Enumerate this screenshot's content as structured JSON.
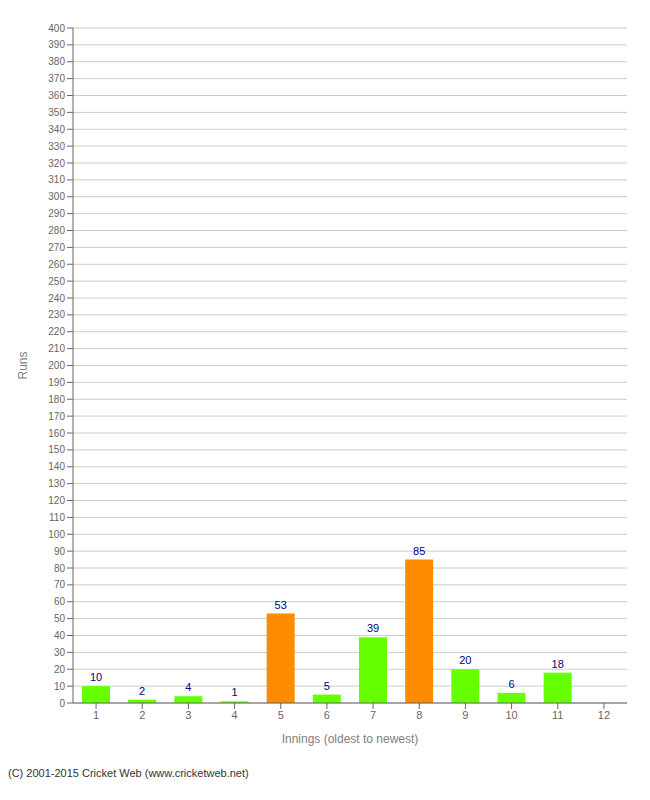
{
  "chart_data": {
    "type": "bar",
    "categories": [
      "1",
      "2",
      "3",
      "4",
      "5",
      "6",
      "7",
      "8",
      "9",
      "10",
      "11",
      "12"
    ],
    "values": [
      10,
      2,
      4,
      1,
      53,
      5,
      39,
      85,
      20,
      6,
      18,
      0
    ],
    "colors": [
      "#66ff00",
      "#66ff00",
      "#66ff00",
      "#66ff00",
      "#ff8c00",
      "#66ff00",
      "#66ff00",
      "#ff8c00",
      "#66ff00",
      "#66ff00",
      "#66ff00",
      "#66ff00"
    ],
    "x_label": "Innings (oldest to newest)",
    "y_label": "Runs",
    "ylim": [
      0,
      400
    ],
    "yticks": [
      0,
      10,
      20,
      30,
      40,
      50,
      60,
      70,
      80,
      90,
      100,
      110,
      120,
      130,
      140,
      150,
      160,
      170,
      180,
      190,
      200,
      210,
      220,
      230,
      240,
      250,
      260,
      270,
      280,
      290,
      300,
      310,
      320,
      330,
      340,
      350,
      360,
      370,
      380,
      390,
      400
    ],
    "grid": true,
    "data_labels": true,
    "annotations": [
      "(C) 2001-2015 Cricket Web (www.cricketweb.net)"
    ]
  }
}
